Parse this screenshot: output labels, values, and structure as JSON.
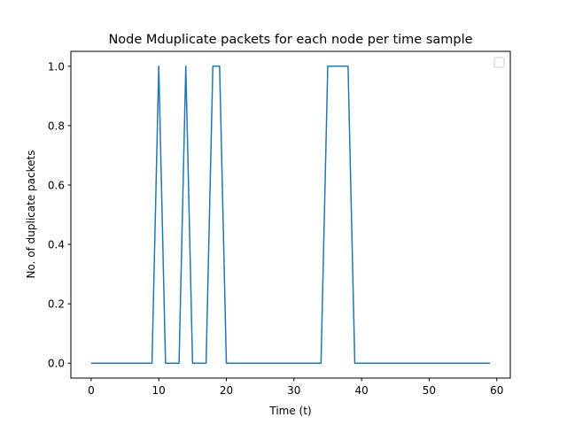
{
  "chart_data": {
    "type": "line",
    "title": "Node Mduplicate packets for each node per time sample",
    "xlabel": "Time (t)",
    "ylabel": "No. of duplicate packets",
    "xlim": [
      -3,
      62
    ],
    "ylim": [
      -0.05,
      1.05
    ],
    "xticks": [
      0,
      10,
      20,
      30,
      40,
      50,
      60
    ],
    "xtick_labels": [
      "0",
      "10",
      "20",
      "30",
      "40",
      "50",
      "60"
    ],
    "yticks": [
      0.0,
      0.2,
      0.4,
      0.6,
      0.8,
      1.0
    ],
    "ytick_labels": [
      "0.0",
      "0.2",
      "0.4",
      "0.6",
      "0.8",
      "1.0"
    ],
    "grid": false,
    "legend": {
      "placement": "top-right",
      "entries": []
    },
    "series": [
      {
        "color": "#1f77b4",
        "x": [
          0,
          1,
          2,
          3,
          4,
          5,
          6,
          7,
          8,
          9,
          10,
          11,
          12,
          13,
          14,
          15,
          16,
          17,
          18,
          19,
          20,
          21,
          22,
          23,
          24,
          25,
          26,
          27,
          28,
          29,
          30,
          31,
          32,
          33,
          34,
          35,
          36,
          37,
          38,
          39,
          40,
          41,
          42,
          43,
          44,
          45,
          46,
          47,
          48,
          49,
          50,
          51,
          52,
          53,
          54,
          55,
          56,
          57,
          58,
          59
        ],
        "y": [
          0,
          0,
          0,
          0,
          0,
          0,
          0,
          0,
          0,
          0,
          1,
          0,
          0,
          0,
          1,
          0,
          0,
          0,
          1,
          1,
          0,
          0,
          0,
          0,
          0,
          0,
          0,
          0,
          0,
          0,
          0,
          0,
          0,
          0,
          0,
          1,
          1,
          1,
          1,
          0,
          0,
          0,
          0,
          0,
          0,
          0,
          0,
          0,
          0,
          0,
          0,
          0,
          0,
          0,
          0,
          0,
          0,
          0,
          0,
          0
        ]
      }
    ]
  }
}
